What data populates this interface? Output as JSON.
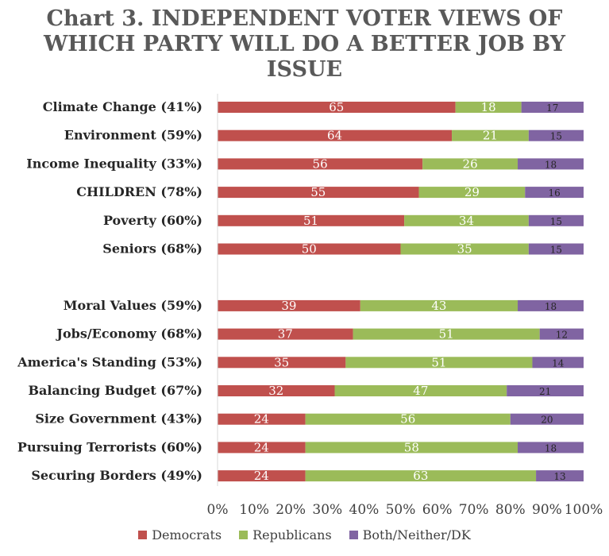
{
  "title": {
    "line1": "Chart 3. INDEPENDENT VOTER VIEWS OF",
    "line2": "WHICH PARTY WILL DO A BETTER JOB BY",
    "line3": "ISSUE"
  },
  "chart_data": {
    "type": "bar",
    "orientation": "horizontal",
    "stacked": "percent",
    "categories": [
      "Climate Change (41%)",
      "Environment (59%)",
      "Income Inequality (33%)",
      "CHILDREN (78%)",
      "Poverty (60%)",
      "Seniors (68%)",
      "",
      "Moral Values (59%)",
      "Jobs/Economy (68%)",
      "America's Standing (53%)",
      "Balancing Budget (67%)",
      "Size Government (43%)",
      "Pursuing Terrorists (60%)",
      "Securing Borders (49%)"
    ],
    "series": [
      {
        "name": "Democrats",
        "color": "#c0504d",
        "values": [
          65,
          64,
          56,
          55,
          51,
          50,
          null,
          39,
          37,
          35,
          32,
          24,
          24,
          24
        ]
      },
      {
        "name": "Republicans",
        "color": "#9bbb59",
        "values": [
          18,
          21,
          26,
          29,
          34,
          35,
          null,
          43,
          51,
          51,
          47,
          56,
          58,
          63
        ]
      },
      {
        "name": "Both/Neither/DK",
        "color": "#8064a2",
        "values": [
          17,
          15,
          18,
          16,
          15,
          15,
          null,
          18,
          12,
          14,
          21,
          20,
          18,
          13
        ]
      }
    ],
    "xlim": [
      0,
      100
    ],
    "xticks": [
      "0%",
      "10%",
      "20%",
      "30%",
      "40%",
      "50%",
      "60%",
      "70%",
      "80%",
      "90%",
      "100%"
    ],
    "legend_position": "bottom",
    "grid": false
  }
}
